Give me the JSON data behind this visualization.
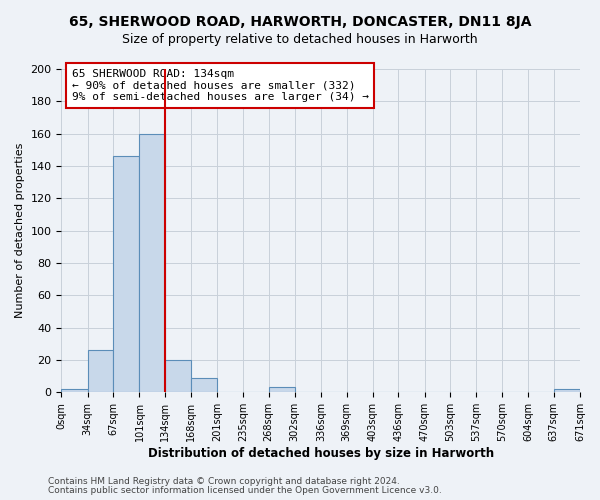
{
  "title": "65, SHERWOOD ROAD, HARWORTH, DONCASTER, DN11 8JA",
  "subtitle": "Size of property relative to detached houses in Harworth",
  "xlabel": "Distribution of detached houses by size in Harworth",
  "ylabel": "Number of detached properties",
  "bin_edges": [
    0,
    34,
    67,
    101,
    134,
    168,
    201,
    235,
    268,
    302,
    336,
    369,
    403,
    436,
    470,
    503,
    537,
    570,
    604,
    637,
    671
  ],
  "bin_labels": [
    "0sqm",
    "34sqm",
    "67sqm",
    "101sqm",
    "134sqm",
    "168sqm",
    "201sqm",
    "235sqm",
    "268sqm",
    "302sqm",
    "336sqm",
    "369sqm",
    "403sqm",
    "436sqm",
    "470sqm",
    "503sqm",
    "537sqm",
    "570sqm",
    "604sqm",
    "637sqm",
    "671sqm"
  ],
  "bar_heights": [
    2,
    26,
    146,
    160,
    20,
    9,
    0,
    0,
    3,
    0,
    0,
    0,
    0,
    0,
    0,
    0,
    0,
    0,
    0,
    2
  ],
  "bar_color": "#c8d8ea",
  "bar_edge_color": "#5b8db8",
  "vline_x": 134,
  "vline_color": "#cc0000",
  "ylim": [
    0,
    200
  ],
  "yticks": [
    0,
    20,
    40,
    60,
    80,
    100,
    120,
    140,
    160,
    180,
    200
  ],
  "annotation_line1": "65 SHERWOOD ROAD: 134sqm",
  "annotation_line2": "← 90% of detached houses are smaller (332)",
  "annotation_line3": "9% of semi-detached houses are larger (34) →",
  "background_color": "#eef2f7",
  "grid_color": "#c8d0da",
  "footer_line1": "Contains HM Land Registry data © Crown copyright and database right 2024.",
  "footer_line2": "Contains public sector information licensed under the Open Government Licence v3.0."
}
